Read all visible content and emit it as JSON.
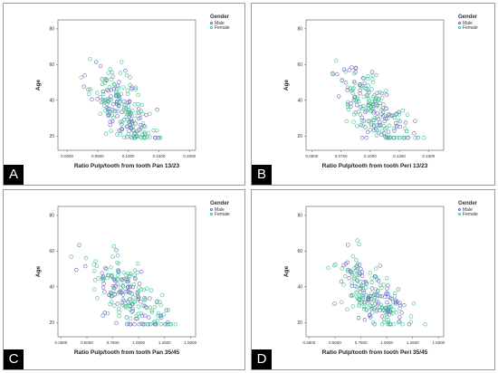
{
  "colors": {
    "male": "#6b63c2",
    "female": "#3fbf8f",
    "frame": "#555555"
  },
  "legend": {
    "title": "Gender",
    "male": "Male",
    "female": "Female"
  },
  "chart_data": [
    {
      "panel": "A",
      "type": "scatter",
      "title": "",
      "xlabel": "Ratio Pulp/tooth from tooth Pan 13/23",
      "ylabel": "Age",
      "xlim": [
        -0.015,
        0.21
      ],
      "ylim": [
        12,
        85
      ],
      "xticks": [
        0.0,
        0.05,
        0.1,
        0.15,
        0.2
      ],
      "xticklabels": [
        "0.0000",
        "0.0500",
        "0.1000",
        "0.1500",
        "0.2000"
      ],
      "yticks": [
        20,
        40,
        60,
        80
      ],
      "yticklabels": [
        "20",
        "40",
        "60",
        "80"
      ],
      "x_center": 0.09,
      "x_spread": 0.055,
      "slope": -300,
      "intercept": 62,
      "series": [
        {
          "name": "Male",
          "n": 95,
          "seed": 11
        },
        {
          "name": "Female",
          "n": 120,
          "seed": 23
        }
      ]
    },
    {
      "panel": "B",
      "type": "scatter",
      "title": "",
      "xlabel": "Ratio Pulp/tooth from tooth Peri 13/23",
      "ylabel": "Age",
      "xlim": [
        0.045,
        0.163
      ],
      "ylim": [
        12,
        85
      ],
      "xticks": [
        0.05,
        0.075,
        0.1,
        0.125,
        0.15
      ],
      "xticklabels": [
        "0.0500",
        "0.0750",
        "0.1000",
        "0.1250",
        "0.1500"
      ],
      "yticks": [
        20,
        40,
        60,
        80
      ],
      "yticklabels": [
        "20",
        "40",
        "60",
        "80"
      ],
      "x_center": 0.105,
      "x_spread": 0.035,
      "slope": -480,
      "intercept": 84,
      "series": [
        {
          "name": "Male",
          "n": 95,
          "seed": 37
        },
        {
          "name": "Female",
          "n": 120,
          "seed": 41
        }
      ]
    },
    {
      "panel": "C",
      "type": "scatter",
      "title": "",
      "xlabel": "Ratio Pulp/tooth from tooth Pan 35/45",
      "ylabel": "Age",
      "xlim": [
        0.22,
        1.55
      ],
      "ylim": [
        12,
        85
      ],
      "xticks": [
        0.25,
        0.5,
        0.75,
        1.0,
        1.25,
        1.5
      ],
      "xticklabels": [
        "0.2500",
        "0.5000",
        "0.7500",
        "1.0000",
        "1.2500",
        "1.5000"
      ],
      "yticks": [
        20,
        40,
        60,
        80
      ],
      "yticklabels": [
        "20",
        "40",
        "60",
        "80"
      ],
      "x_center": 0.9,
      "x_spread": 0.42,
      "slope": -38,
      "intercept": 69,
      "series": [
        {
          "name": "Male",
          "n": 95,
          "seed": 53
        },
        {
          "name": "Female",
          "n": 120,
          "seed": 67
        }
      ]
    },
    {
      "panel": "D",
      "type": "scatter",
      "title": "",
      "xlabel": "Ratio Pulp/tooth from tooth Peri 35/45",
      "ylabel": "Age",
      "xlim": [
        0.22,
        1.55
      ],
      "ylim": [
        12,
        85
      ],
      "xticks": [
        0.25,
        0.5,
        0.75,
        1.0,
        1.25,
        1.5
      ],
      "xticklabels": [
        "0.2500",
        "0.5000",
        "0.7500",
        "1.0000",
        "1.2500",
        "1.5000"
      ],
      "yticks": [
        20,
        40,
        60,
        80
      ],
      "yticklabels": [
        "20",
        "40",
        "60",
        "80"
      ],
      "x_center": 0.88,
      "x_spread": 0.4,
      "slope": -36,
      "intercept": 66,
      "series": [
        {
          "name": "Male",
          "n": 95,
          "seed": 71
        },
        {
          "name": "Female",
          "n": 120,
          "seed": 89
        }
      ]
    }
  ]
}
